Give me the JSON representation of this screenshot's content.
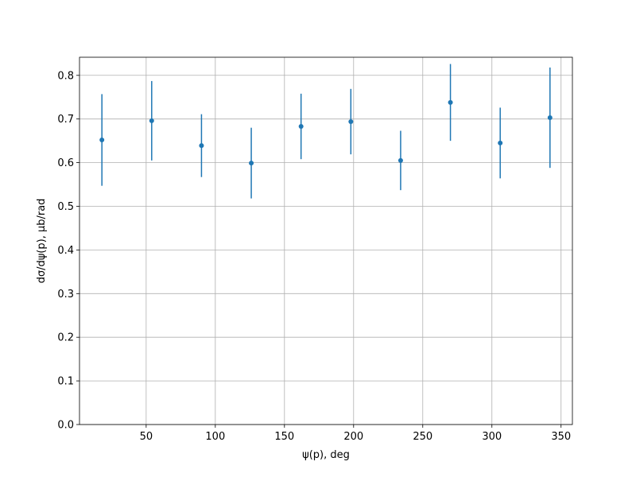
{
  "chart_data": {
    "type": "errorbar",
    "xlabel": "ψ(p), deg",
    "ylabel": "dσ/dψ(p), μb/rad",
    "x": [
      18,
      54,
      90,
      126,
      162,
      198,
      234,
      270,
      306,
      342
    ],
    "values": [
      0.652,
      0.696,
      0.639,
      0.599,
      0.683,
      0.694,
      0.605,
      0.738,
      0.645,
      0.703
    ],
    "errors": [
      0.105,
      0.091,
      0.072,
      0.081,
      0.075,
      0.075,
      0.068,
      0.088,
      0.081,
      0.115
    ],
    "color": "#1f77b4",
    "xlim": [
      1.8,
      358.2
    ],
    "ylim": [
      0,
      0.8415
    ],
    "xticks": [
      50,
      100,
      150,
      200,
      250,
      300,
      350
    ],
    "yticks": [
      {
        "value": 0,
        "label": "0.0"
      },
      0.1,
      0.2,
      0.3,
      0.4,
      0.5,
      0.6,
      0.7,
      0.8
    ],
    "grid": true
  }
}
